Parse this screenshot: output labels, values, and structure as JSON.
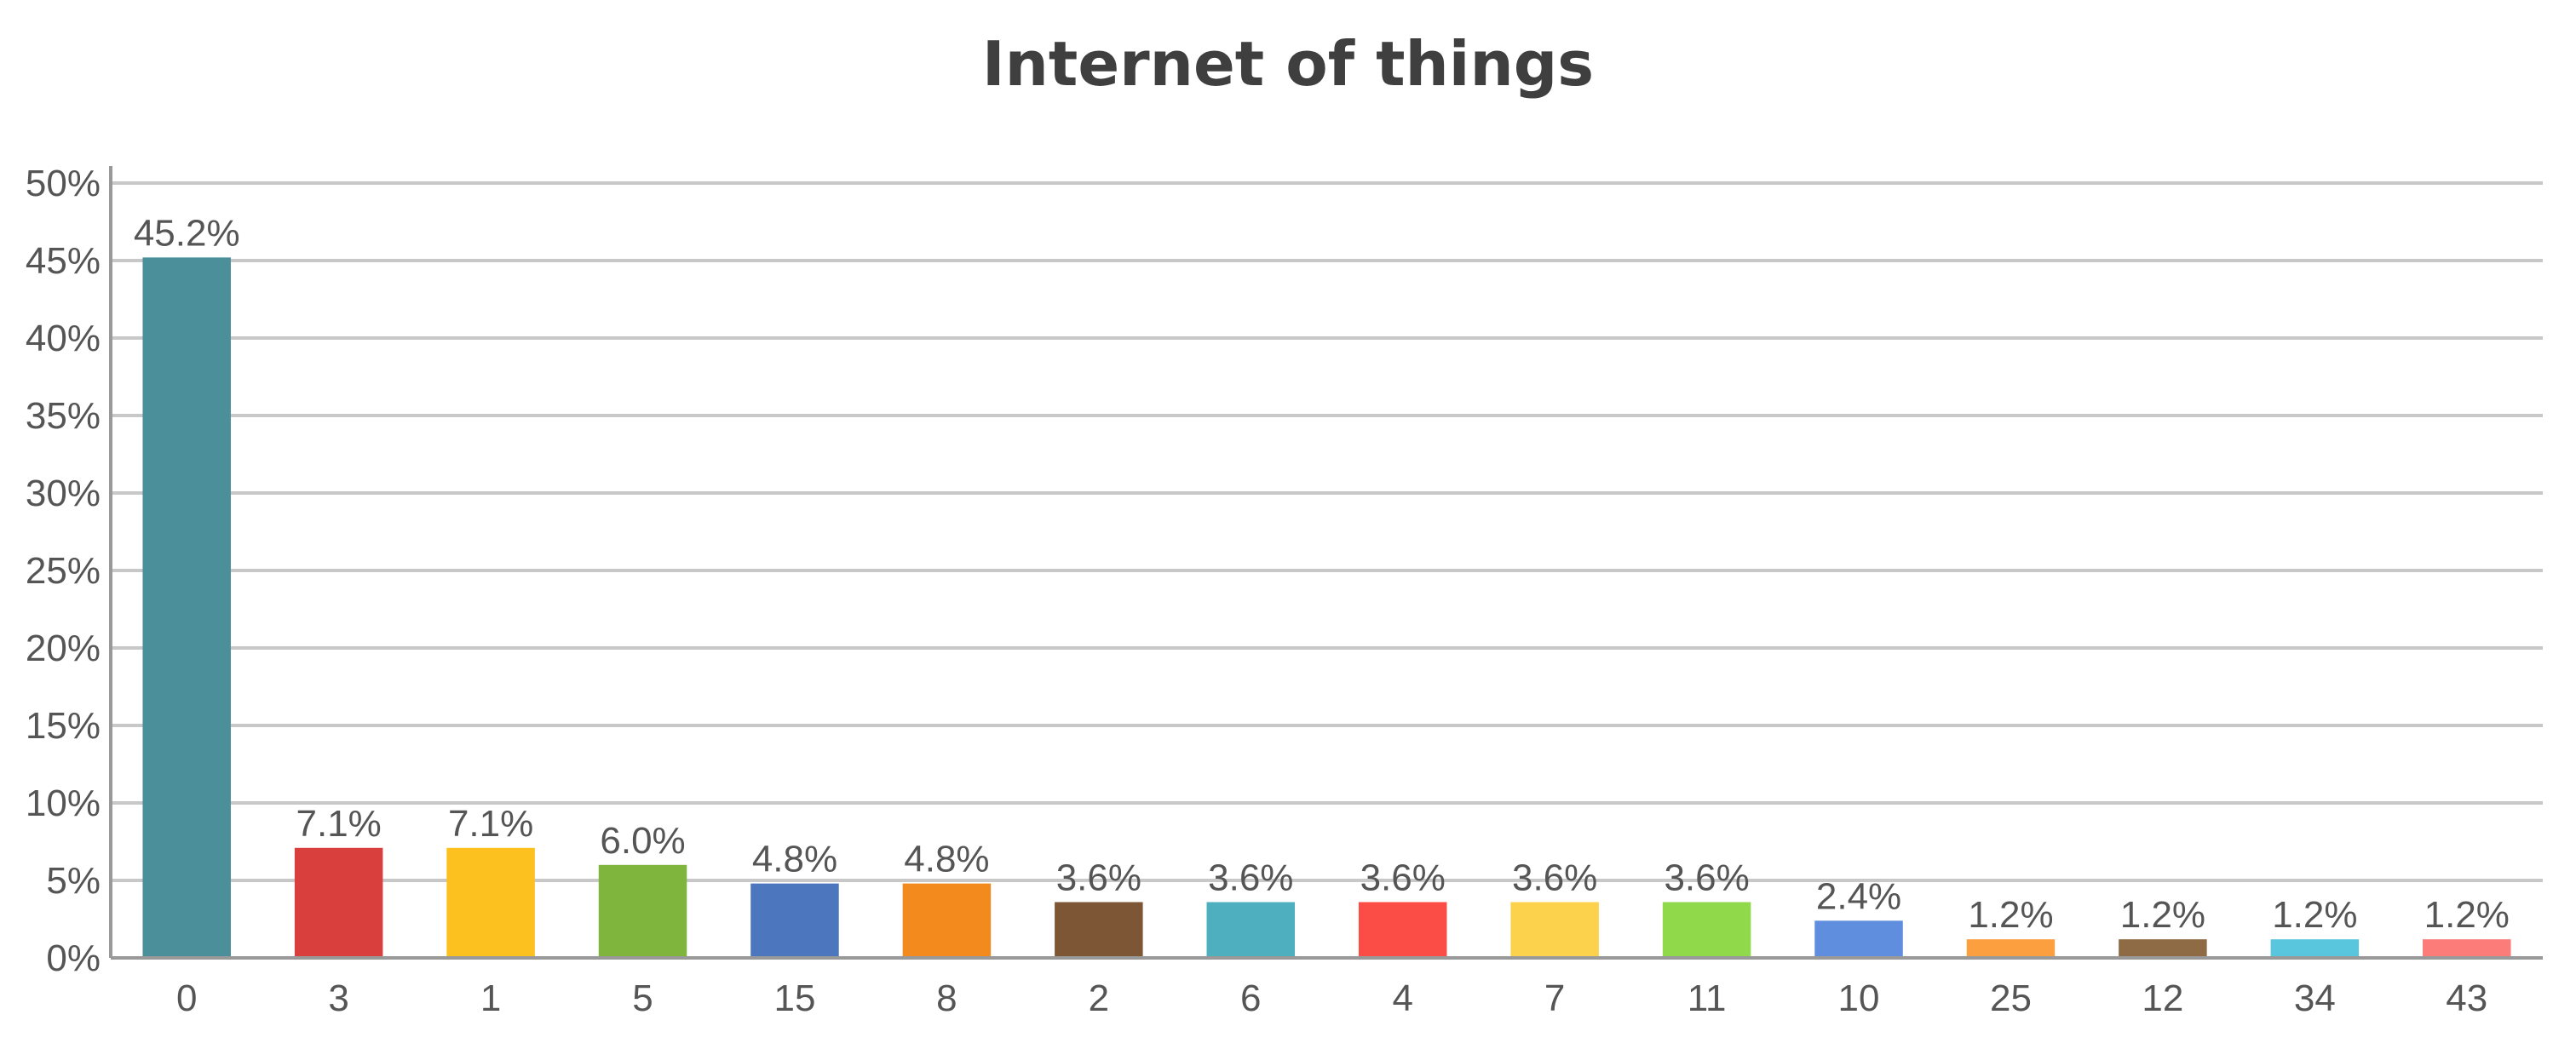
{
  "chart_data": {
    "type": "bar",
    "title": "Internet of things",
    "xlabel": "",
    "ylabel": "",
    "ylim": [
      0,
      50
    ],
    "y_ticks": [
      "0%",
      "5%",
      "10%",
      "15%",
      "20%",
      "25%",
      "30%",
      "35%",
      "40%",
      "45%",
      "50%"
    ],
    "grid": true,
    "categories": [
      "0",
      "3",
      "1",
      "5",
      "15",
      "8",
      "2",
      "6",
      "4",
      "7",
      "11",
      "10",
      "25",
      "12",
      "34",
      "43"
    ],
    "values": [
      45.2,
      7.1,
      7.1,
      6.0,
      4.8,
      4.8,
      3.6,
      3.6,
      3.6,
      3.6,
      3.6,
      2.4,
      1.2,
      1.2,
      1.2,
      1.2
    ],
    "data_labels": [
      "45.2%",
      "7.1%",
      "7.1%",
      "6.0%",
      "4.8%",
      "4.8%",
      "3.6%",
      "3.6%",
      "3.6%",
      "3.6%",
      "3.6%",
      "2.4%",
      "1.2%",
      "1.2%",
      "1.2%",
      "1.2%"
    ],
    "colors": [
      "#4a8f99",
      "#d9403d",
      "#fcc01f",
      "#7fb43d",
      "#4c76be",
      "#f28a1d",
      "#7d5635",
      "#4eb0bf",
      "#fc4c46",
      "#fcd14c",
      "#8fd94a",
      "#5f8ede",
      "#fc9f3f",
      "#8e6a45",
      "#5ac6de",
      "#fc7c7a"
    ]
  }
}
